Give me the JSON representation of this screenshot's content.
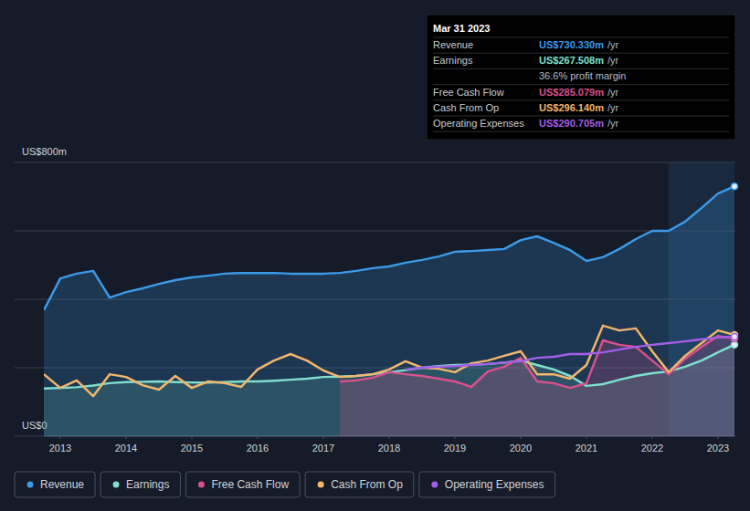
{
  "chart_data": {
    "type": "line",
    "x": [
      2012.75,
      2013,
      2013.25,
      2013.5,
      2013.75,
      2014,
      2014.25,
      2014.5,
      2014.75,
      2015,
      2015.25,
      2015.5,
      2015.75,
      2016,
      2016.25,
      2016.5,
      2016.75,
      2017,
      2017.25,
      2017.5,
      2017.75,
      2018,
      2018.25,
      2018.5,
      2018.75,
      2019,
      2019.25,
      2019.5,
      2019.75,
      2020,
      2020.25,
      2020.5,
      2020.75,
      2021,
      2021.25,
      2021.5,
      2021.75,
      2022,
      2022.25,
      2022.5,
      2022.75,
      2023,
      2023.25
    ],
    "xlim": [
      2012.75,
      2023.25
    ],
    "xticks": [
      2013,
      2014,
      2015,
      2016,
      2017,
      2018,
      2019,
      2020,
      2021,
      2022,
      2023
    ],
    "ylim": [
      0,
      800
    ],
    "yticks": [
      {
        "value": 0,
        "label": "US$0"
      },
      {
        "value": 200,
        "label": null
      },
      {
        "value": 400,
        "label": null
      },
      {
        "value": 600,
        "label": null
      },
      {
        "value": 800,
        "label": "US$800m"
      }
    ],
    "grid": true,
    "legend": "bottom",
    "highlight": [
      2022.25,
      2023.25
    ],
    "series": [
      {
        "name": "Revenue",
        "color": "#3b9ae8",
        "values": [
          368,
          461,
          475,
          483,
          405,
          421,
          432,
          445,
          456,
          464,
          469,
          475,
          477,
          477,
          477,
          475,
          475,
          475,
          477,
          483,
          491,
          496,
          507,
          515,
          525,
          539,
          541,
          544,
          547,
          573,
          584,
          565,
          544,
          512,
          523,
          547,
          576,
          600,
          600,
          627,
          667,
          709,
          730.33
        ]
      },
      {
        "name": "Earnings",
        "color": "#7fe0cf",
        "values": [
          139,
          141,
          143,
          148,
          155,
          158,
          159,
          160,
          158,
          157,
          157,
          158,
          160,
          160,
          162,
          165,
          168,
          173,
          174,
          176,
          181,
          187,
          193,
          200,
          205,
          208,
          209,
          211,
          215,
          221,
          208,
          195,
          176,
          147,
          152,
          165,
          176,
          184,
          189,
          203,
          221,
          245,
          267.508
        ]
      },
      {
        "name": "Free Cash Flow",
        "color": "#d9508c",
        "values": [
          null,
          null,
          null,
          null,
          null,
          null,
          null,
          null,
          null,
          null,
          null,
          null,
          null,
          null,
          null,
          null,
          null,
          null,
          160,
          163,
          171,
          187,
          181,
          176,
          168,
          160,
          144,
          189,
          203,
          229,
          160,
          155,
          141,
          155,
          280,
          267,
          261,
          221,
          181,
          227,
          261,
          293,
          285.079
        ]
      },
      {
        "name": "Cash From Op",
        "color": "#f2b66c",
        "values": [
          181,
          141,
          163,
          117,
          181,
          173,
          149,
          136,
          176,
          141,
          160,
          155,
          144,
          195,
          221,
          240,
          221,
          192,
          173,
          176,
          181,
          195,
          219,
          200,
          197,
          187,
          213,
          221,
          235,
          248,
          181,
          181,
          168,
          208,
          323,
          309,
          315,
          248,
          187,
          235,
          272,
          309,
          296.14
        ]
      },
      {
        "name": "Operating Expenses",
        "color": "#a35ee8",
        "values": [
          null,
          null,
          null,
          null,
          null,
          null,
          null,
          null,
          null,
          null,
          null,
          null,
          null,
          null,
          null,
          null,
          null,
          null,
          null,
          null,
          null,
          null,
          195,
          200,
          203,
          205,
          208,
          211,
          215,
          219,
          229,
          232,
          240,
          240,
          245,
          253,
          261,
          267,
          272,
          277,
          283,
          288,
          290.705
        ]
      }
    ],
    "tooltip": {
      "title": "Mar 31 2023",
      "rows": [
        {
          "label": "Revenue",
          "value": "US$730.330m",
          "unit": "/yr",
          "color": "#3b9ae8"
        },
        {
          "label": "Earnings",
          "value": "US$267.508m",
          "unit": "/yr",
          "color": "#7fe0cf"
        },
        {
          "note": "36.6% profit margin"
        },
        {
          "label": "Free Cash Flow",
          "value": "US$285.079m",
          "unit": "/yr",
          "color": "#d9508c"
        },
        {
          "label": "Cash From Op",
          "value": "US$296.140m",
          "unit": "/yr",
          "color": "#f2b66c"
        },
        {
          "label": "Operating Expenses",
          "value": "US$290.705m",
          "unit": "/yr",
          "color": "#a35ee8"
        }
      ]
    }
  }
}
